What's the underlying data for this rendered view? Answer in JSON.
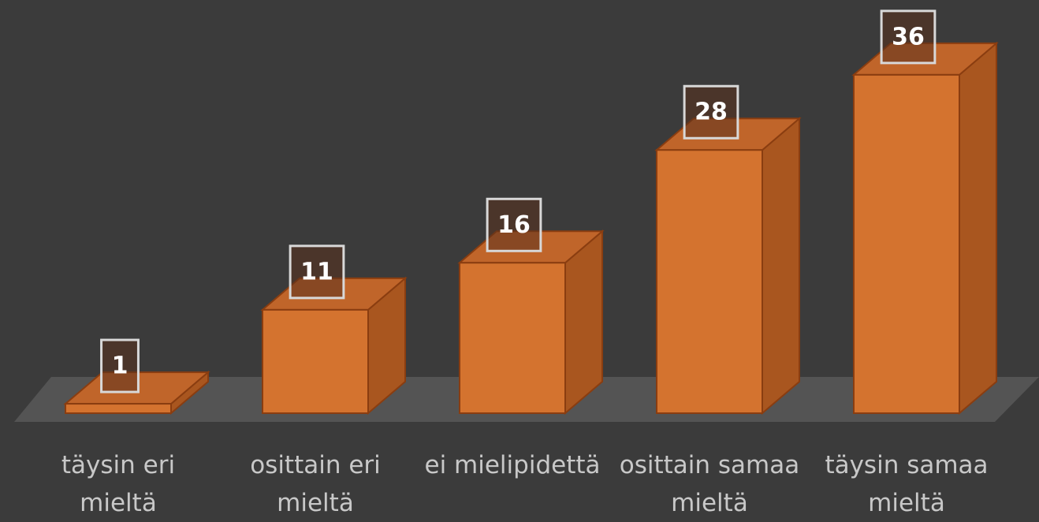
{
  "chart_data": {
    "type": "bar3d",
    "categories": [
      "täysin eri mieltä",
      "osittain eri mieltä",
      "ei mielipidettä",
      "osittain samaa mieltä",
      "täysin samaa mieltä"
    ],
    "values": [
      1,
      11,
      16,
      28,
      36
    ],
    "color": "#d4732f"
  }
}
